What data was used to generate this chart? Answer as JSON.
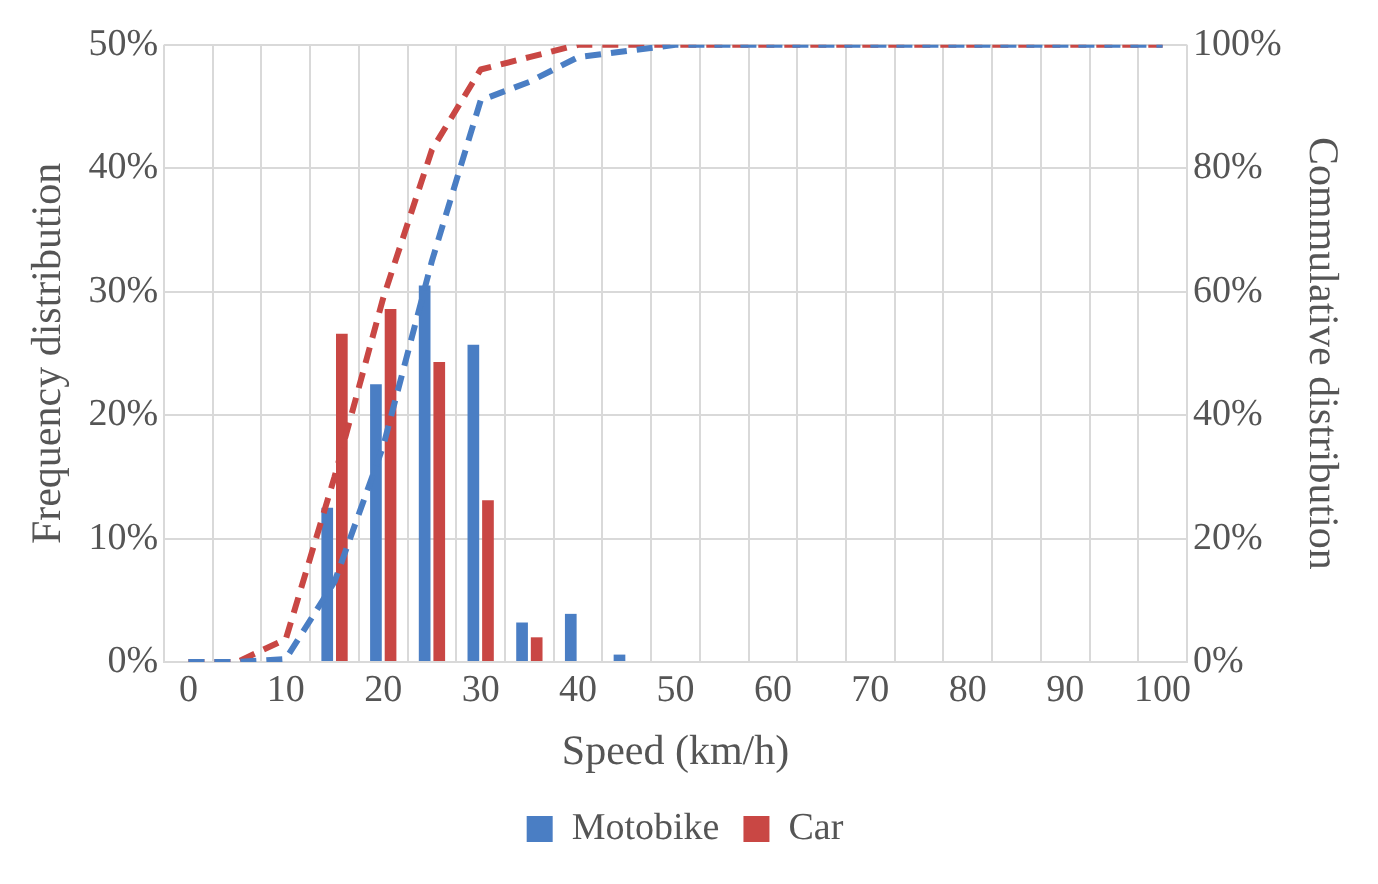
{
  "chart_data": {
    "type": "bar",
    "xlabel": "Speed (km/h)",
    "ylabel": "Frequency distribution",
    "y2label": "Commulative distribution",
    "categories": [
      "0",
      null,
      "10",
      null,
      "20",
      null,
      "30",
      null,
      "40",
      null,
      "50",
      null,
      "60",
      null,
      "70",
      null,
      "80",
      null,
      "90",
      null,
      "100"
    ],
    "series": [
      {
        "name": "Motobike",
        "color": "#4a7ec4",
        "values": [
          0,
          0,
          0,
          12.5,
          22.5,
          30.5,
          25.7,
          3.2,
          3.9,
          0.6,
          0,
          0,
          0,
          0,
          0,
          0,
          0,
          0,
          0,
          0,
          0
        ]
      },
      {
        "name": "Car",
        "color": "#c94744",
        "values": [
          0,
          0,
          0,
          26.6,
          28.6,
          24.3,
          13.1,
          2,
          0,
          0,
          0,
          0,
          0,
          0,
          0,
          0,
          0,
          0,
          0,
          0,
          0
        ]
      },
      {
        "type": "line",
        "axis": "y2",
        "line_style": "dashed",
        "color": "#4a7ec4",
        "values": [
          0,
          0,
          0.5,
          13,
          35,
          65,
          91,
          94,
          98,
          99,
          100,
          100,
          100,
          100,
          100,
          100,
          100,
          100,
          100,
          100,
          100
        ]
      },
      {
        "type": "line",
        "axis": "y2",
        "line_style": "dashed",
        "color": "#c94744",
        "values": [
          0,
          0,
          3.7,
          30,
          59,
          83,
          96,
          98,
          100,
          100,
          100,
          100,
          100,
          100,
          100,
          100,
          100,
          100,
          100,
          100,
          100
        ]
      }
    ],
    "ylim": [
      0,
      50
    ],
    "yticks": [
      {
        "value": 0,
        "label": "0%"
      },
      {
        "value": 10,
        "label": "10%"
      },
      {
        "value": 20,
        "label": "20%"
      },
      {
        "value": 30,
        "label": "30%"
      },
      {
        "value": 40,
        "label": "40%"
      },
      {
        "value": 50,
        "label": "50%"
      }
    ],
    "y2lim": [
      0,
      100
    ],
    "y2ticks": [
      {
        "value": 0,
        "label": "0%"
      },
      {
        "value": 20,
        "label": "20%"
      },
      {
        "value": 40,
        "label": "40%"
      },
      {
        "value": 60,
        "label": "60%"
      },
      {
        "value": 80,
        "label": "80%"
      },
      {
        "value": 100,
        "label": "100%"
      }
    ],
    "grid": true,
    "legend": "bottom",
    "marker": "none"
  }
}
